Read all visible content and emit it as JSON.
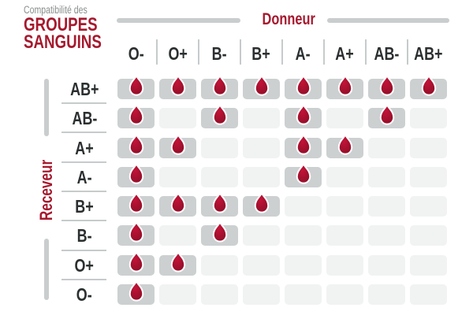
{
  "title": {
    "kicker": "Compatibilité des",
    "line1": "GROUPES",
    "line2": "SANGUINS"
  },
  "chart_data": {
    "type": "heatmap",
    "title": "Compatibilité des GROUPES SANGUINS",
    "x_title": "Donneur",
    "y_title": "Receveur",
    "x_categories": [
      "O-",
      "O+",
      "B-",
      "B+",
      "A-",
      "A+",
      "AB-",
      "AB+"
    ],
    "y_categories": [
      "AB+",
      "AB-",
      "A+",
      "A-",
      "B+",
      "B-",
      "O+",
      "O-"
    ],
    "values": [
      [
        1,
        1,
        1,
        1,
        1,
        1,
        1,
        1
      ],
      [
        1,
        0,
        1,
        0,
        1,
        0,
        1,
        0
      ],
      [
        1,
        1,
        0,
        0,
        1,
        1,
        0,
        0
      ],
      [
        1,
        0,
        0,
        0,
        1,
        0,
        0,
        0
      ],
      [
        1,
        1,
        1,
        1,
        0,
        0,
        0,
        0
      ],
      [
        1,
        0,
        1,
        0,
        0,
        0,
        0,
        0
      ],
      [
        1,
        1,
        0,
        0,
        0,
        0,
        0,
        0
      ],
      [
        1,
        0,
        0,
        0,
        0,
        0,
        0,
        0
      ]
    ],
    "value_meaning": "1 = compatible (blood-drop icon on dark gray cell), 0 = not compatible (empty light gray cell)",
    "legend_position": "none",
    "grid": "off"
  },
  "icons": {
    "compatible": "blood-drop-icon"
  },
  "colors": {
    "accent_red": "#a6192e",
    "drop_red_highlight": "#c21337",
    "drop_red_shadow": "#8e0e28",
    "cell_compatible_gray": "#ccd0d1",
    "cell_incompatible_gray": "#f1f2f2",
    "bar_gray": "#c9cdcd",
    "divider_gray": "#c6cbcc",
    "label_text": "#2b2f30",
    "kicker_text": "#8b8e8f"
  }
}
